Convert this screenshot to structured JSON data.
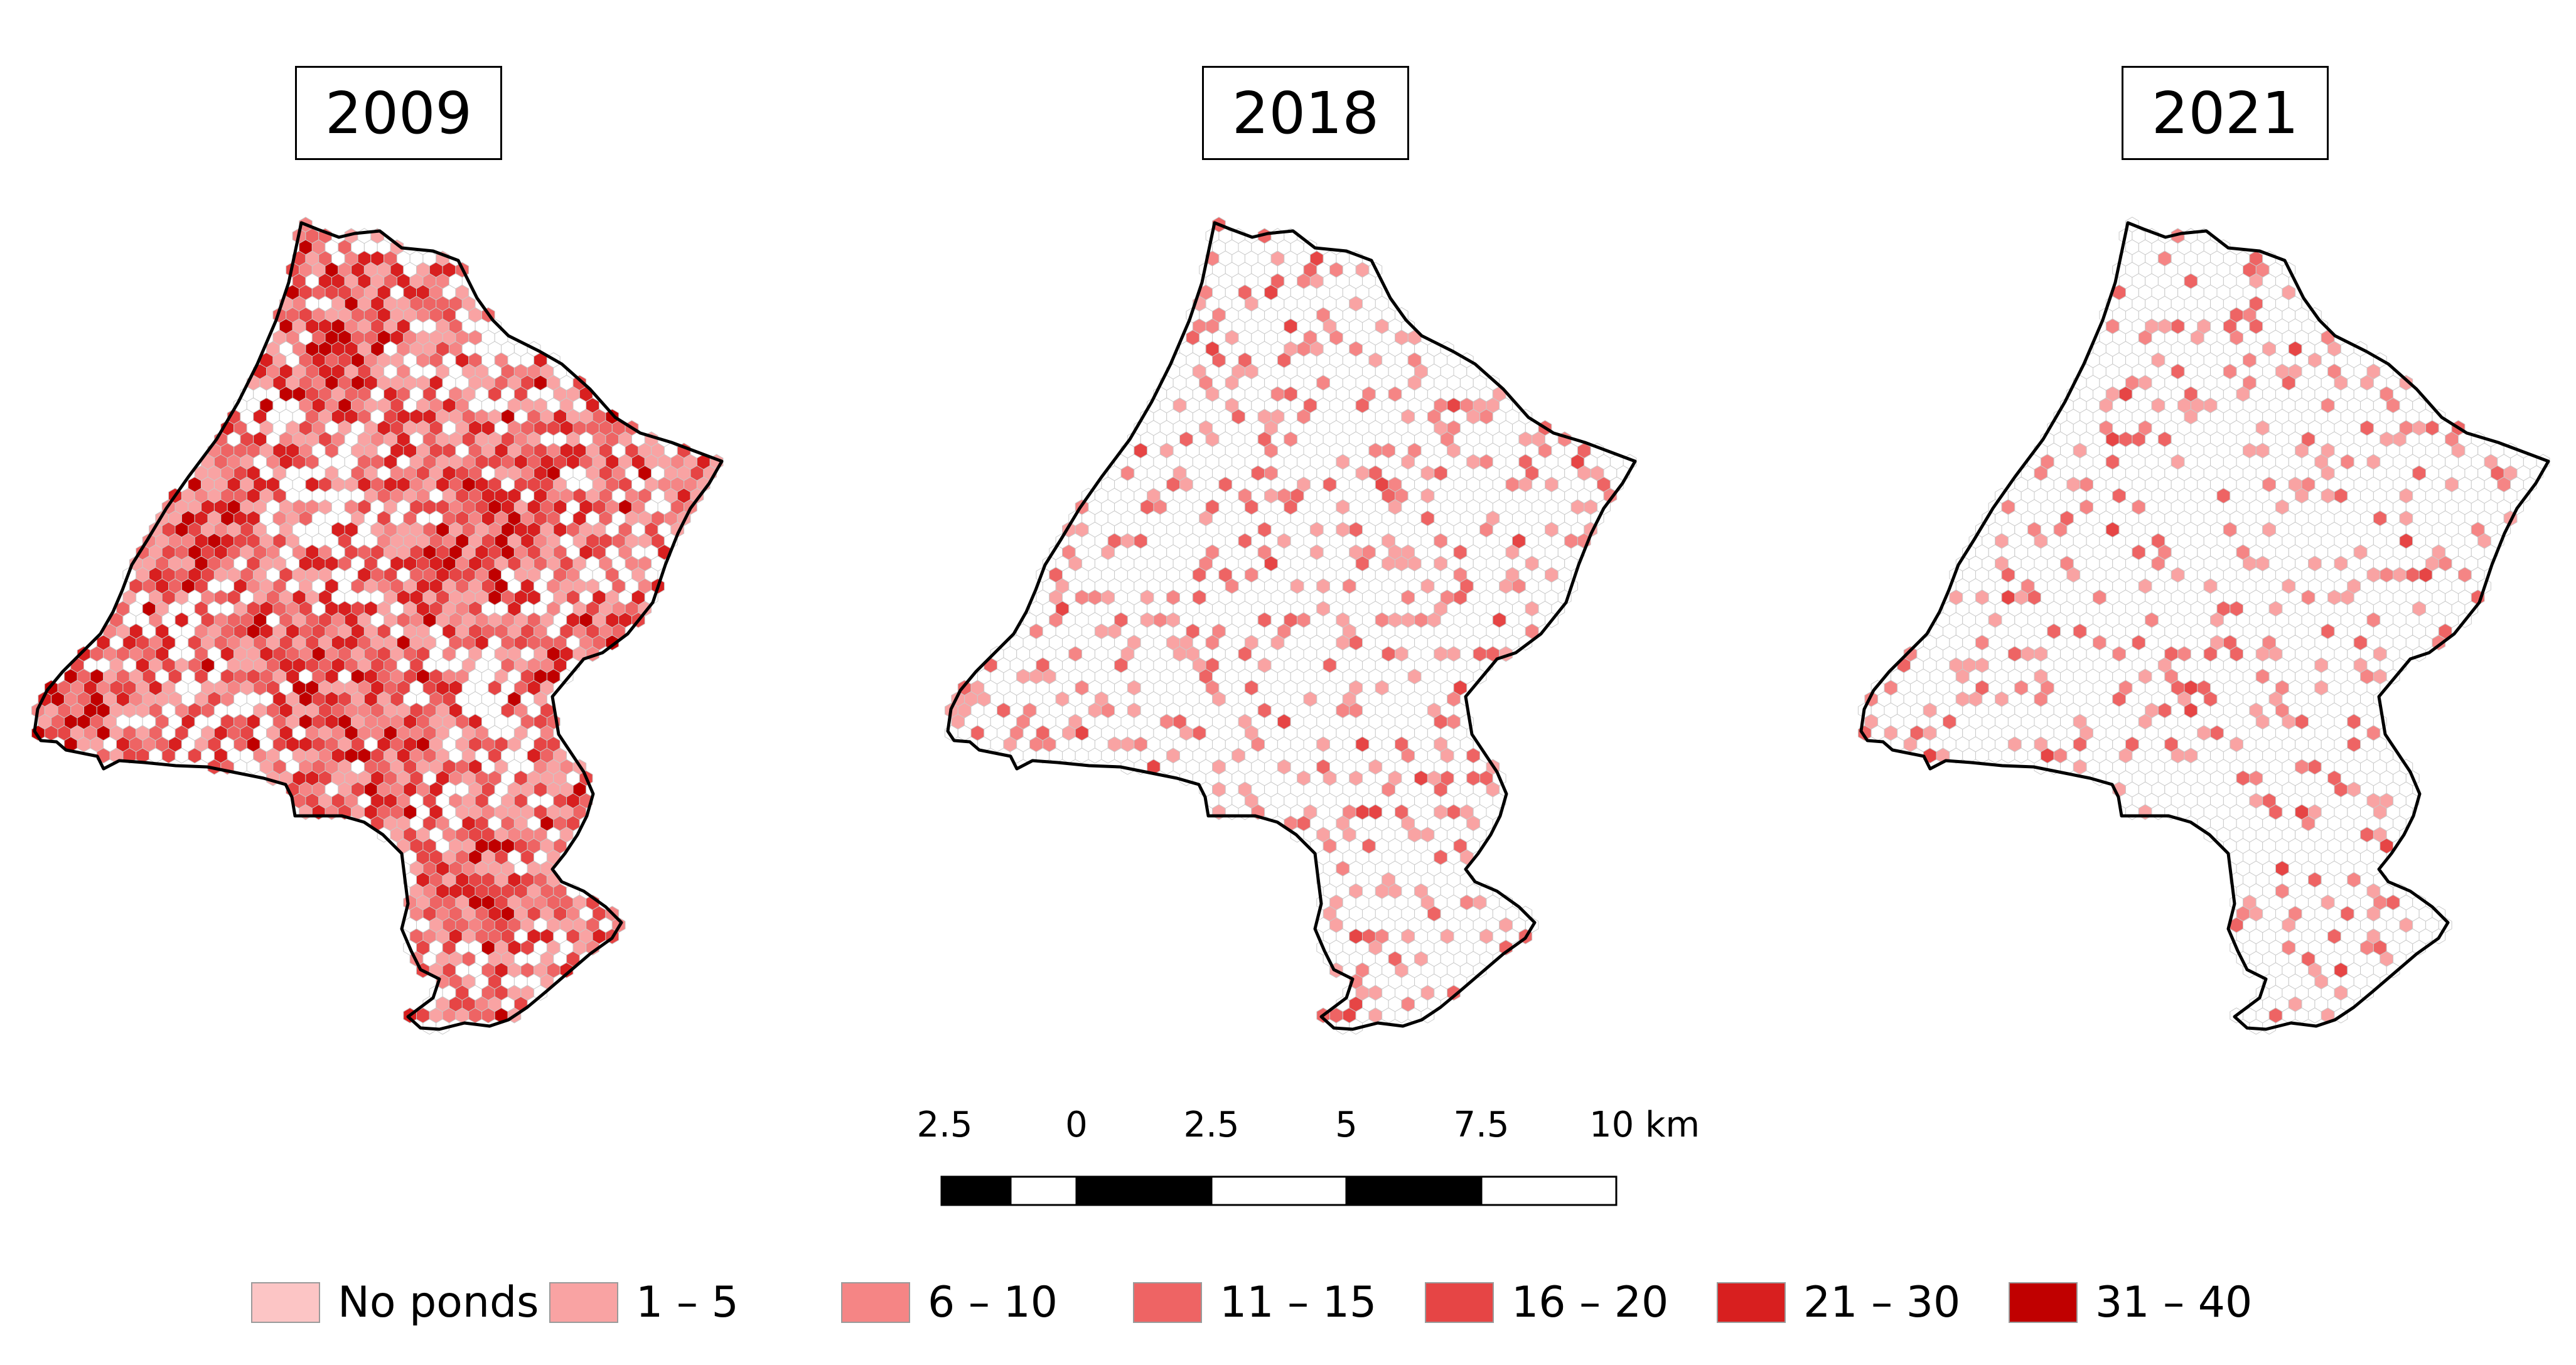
{
  "panels": [
    {
      "year": "2009",
      "density": 1.0
    },
    {
      "year": "2018",
      "density": 0.28
    },
    {
      "year": "2021",
      "density": 0.22
    }
  ],
  "scale_bar": {
    "labels": [
      "2.5",
      "0",
      "2.5",
      "5",
      "7.5",
      "10 km"
    ],
    "segments": [
      "black",
      "white",
      "black",
      "white",
      "black",
      "white"
    ]
  },
  "legend": {
    "items": [
      {
        "label": "No ponds",
        "color": "#fcc5c5"
      },
      {
        "label": "1 – 5",
        "color": "#f9a3a3"
      },
      {
        "label": "6 – 10",
        "color": "#f58585"
      },
      {
        "label": "11 – 15",
        "color": "#ee6464"
      },
      {
        "label": "16 – 20",
        "color": "#e64545"
      },
      {
        "label": "21 – 30",
        "color": "#d81f1f"
      },
      {
        "label": "31 – 40",
        "color": "#c00000"
      }
    ]
  }
}
